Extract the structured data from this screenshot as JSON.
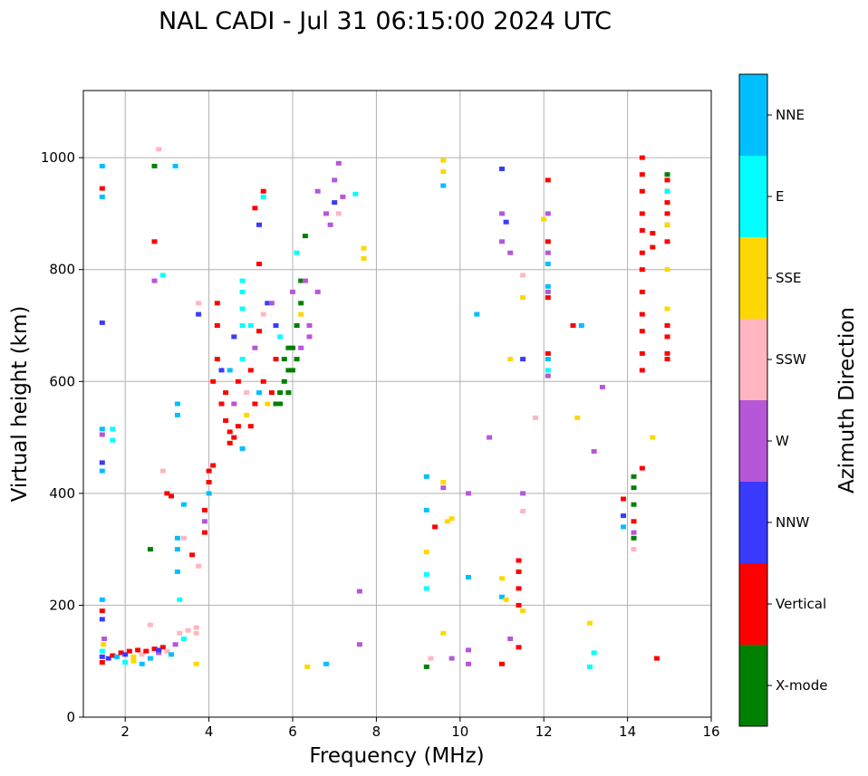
{
  "chart_data": {
    "type": "scatter",
    "title": "NAL CADI - Jul 31 06:15:00 2024 UTC",
    "xlabel": "Frequency (MHz)",
    "ylabel": "Virtual height (km)",
    "xlim": [
      1.0,
      16.0
    ],
    "ylim": [
      0,
      1120
    ],
    "xticks": [
      2,
      4,
      6,
      8,
      10,
      12,
      14,
      16
    ],
    "yticks": [
      0,
      200,
      400,
      600,
      800,
      1000
    ],
    "grid": true,
    "colorbar": {
      "title": "Azimuth Direction",
      "categories": [
        {
          "name": "X-mode",
          "color": "#008000"
        },
        {
          "name": "Vertical",
          "color": "#ff0000"
        },
        {
          "name": "NNW",
          "color": "#3a3aff"
        },
        {
          "name": "W",
          "color": "#b557d7"
        },
        {
          "name": "SSW",
          "color": "#ffb6c1"
        },
        {
          "name": "SSE",
          "color": "#ffd700"
        },
        {
          "name": "E",
          "color": "#00ffff"
        },
        {
          "name": "NNE",
          "color": "#00bfff"
        }
      ]
    },
    "points": [
      [
        1.45,
        98,
        1
      ],
      [
        1.45,
        108,
        2
      ],
      [
        1.45,
        118,
        6
      ],
      [
        1.48,
        130,
        5
      ],
      [
        1.5,
        140,
        3
      ],
      [
        1.45,
        175,
        2
      ],
      [
        1.45,
        190,
        1
      ],
      [
        1.45,
        210,
        7
      ],
      [
        1.45,
        440,
        7
      ],
      [
        1.45,
        455,
        2
      ],
      [
        1.45,
        505,
        3
      ],
      [
        1.45,
        515,
        7
      ],
      [
        1.45,
        705,
        2
      ],
      [
        1.45,
        930,
        7
      ],
      [
        1.45,
        945,
        1
      ],
      [
        1.45,
        985,
        7
      ],
      [
        1.7,
        515,
        6
      ],
      [
        1.7,
        495,
        6
      ],
      [
        1.6,
        105,
        2
      ],
      [
        1.7,
        110,
        1
      ],
      [
        1.8,
        108,
        7
      ],
      [
        1.9,
        115,
        1
      ],
      [
        2.0,
        112,
        2
      ],
      [
        2.1,
        118,
        1
      ],
      [
        2.2,
        108,
        5
      ],
      [
        2.3,
        120,
        1
      ],
      [
        2.4,
        112,
        4
      ],
      [
        2.5,
        118,
        1
      ],
      [
        2.6,
        105,
        7
      ],
      [
        2.7,
        122,
        1
      ],
      [
        2.8,
        115,
        3
      ],
      [
        2.9,
        125,
        1
      ],
      [
        3.0,
        118,
        4
      ],
      [
        3.1,
        112,
        7
      ],
      [
        3.2,
        130,
        3
      ],
      [
        3.3,
        150,
        4
      ],
      [
        3.4,
        140,
        6
      ],
      [
        3.5,
        155,
        4
      ],
      [
        3.7,
        150,
        4
      ],
      [
        3.7,
        160,
        4
      ],
      [
        3.7,
        95,
        5
      ],
      [
        2.0,
        98,
        6
      ],
      [
        2.2,
        100,
        5
      ],
      [
        2.4,
        95,
        7
      ],
      [
        2.8,
        120,
        2
      ],
      [
        2.6,
        165,
        4
      ],
      [
        2.7,
        985,
        0
      ],
      [
        2.8,
        1015,
        4
      ],
      [
        3.2,
        985,
        7
      ],
      [
        2.7,
        850,
        1
      ],
      [
        2.7,
        780,
        3
      ],
      [
        2.9,
        790,
        6
      ],
      [
        2.9,
        440,
        4
      ],
      [
        3.0,
        400,
        1
      ],
      [
        3.1,
        395,
        1
      ],
      [
        3.25,
        320,
        7
      ],
      [
        3.25,
        300,
        7
      ],
      [
        3.25,
        260,
        7
      ],
      [
        3.25,
        560,
        7
      ],
      [
        3.25,
        540,
        7
      ],
      [
        3.3,
        210,
        6
      ],
      [
        3.4,
        380,
        7
      ],
      [
        3.4,
        320,
        4
      ],
      [
        3.6,
        290,
        1
      ],
      [
        3.75,
        270,
        4
      ],
      [
        3.75,
        720,
        2
      ],
      [
        3.75,
        740,
        4
      ],
      [
        2.6,
        300,
        0
      ],
      [
        3.9,
        330,
        1
      ],
      [
        3.9,
        350,
        3
      ],
      [
        3.9,
        370,
        1
      ],
      [
        4.0,
        400,
        7
      ],
      [
        4.0,
        420,
        1
      ],
      [
        4.0,
        440,
        1
      ],
      [
        4.1,
        450,
        1
      ],
      [
        4.8,
        700,
        6
      ],
      [
        4.8,
        730,
        6
      ],
      [
        4.8,
        760,
        6
      ],
      [
        4.8,
        780,
        6
      ],
      [
        4.1,
        600,
        1
      ],
      [
        4.2,
        640,
        1
      ],
      [
        4.2,
        700,
        1
      ],
      [
        4.2,
        740,
        1
      ],
      [
        4.3,
        560,
        1
      ],
      [
        4.4,
        530,
        1
      ],
      [
        4.5,
        510,
        1
      ],
      [
        4.5,
        490,
        1
      ],
      [
        4.6,
        500,
        1
      ],
      [
        4.7,
        520,
        1
      ],
      [
        4.4,
        580,
        1
      ],
      [
        4.6,
        560,
        3
      ],
      [
        4.3,
        620,
        2
      ],
      [
        4.5,
        620,
        7
      ],
      [
        4.7,
        600,
        1
      ],
      [
        4.9,
        580,
        4
      ],
      [
        4.8,
        640,
        6
      ],
      [
        5.0,
        620,
        1
      ],
      [
        5.1,
        660,
        3
      ],
      [
        5.0,
        700,
        6
      ],
      [
        5.2,
        690,
        1
      ],
      [
        5.3,
        720,
        4
      ],
      [
        5.4,
        740,
        2
      ],
      [
        5.3,
        600,
        1
      ],
      [
        5.2,
        580,
        7
      ],
      [
        5.1,
        560,
        1
      ],
      [
        5.4,
        560,
        5
      ],
      [
        5.5,
        580,
        1
      ],
      [
        4.9,
        540,
        5
      ],
      [
        4.6,
        680,
        2
      ],
      [
        4.8,
        480,
        7
      ],
      [
        5.0,
        520,
        1
      ],
      [
        5.6,
        640,
        1
      ],
      [
        5.7,
        680,
        6
      ],
      [
        5.6,
        700,
        2
      ],
      [
        5.5,
        740,
        3
      ],
      [
        5.6,
        560,
        0
      ],
      [
        5.7,
        580,
        0
      ],
      [
        5.8,
        600,
        0
      ],
      [
        5.9,
        620,
        0
      ],
      [
        5.8,
        640,
        0
      ],
      [
        6.0,
        660,
        0
      ],
      [
        6.1,
        700,
        0
      ],
      [
        6.2,
        740,
        0
      ],
      [
        6.2,
        780,
        0
      ],
      [
        6.1,
        830,
        6
      ],
      [
        6.3,
        860,
        0
      ],
      [
        6.0,
        760,
        3
      ],
      [
        6.2,
        720,
        5
      ],
      [
        6.3,
        780,
        3
      ],
      [
        6.4,
        700,
        3
      ],
      [
        6.2,
        660,
        3
      ],
      [
        6.4,
        680,
        3
      ],
      [
        6.6,
        760,
        3
      ],
      [
        5.9,
        660,
        0
      ],
      [
        5.7,
        560,
        0
      ],
      [
        5.9,
        580,
        0
      ],
      [
        6.0,
        620,
        0
      ],
      [
        6.1,
        640,
        0
      ],
      [
        6.8,
        900,
        3
      ],
      [
        6.9,
        880,
        3
      ],
      [
        7.0,
        920,
        2
      ],
      [
        7.1,
        900,
        4
      ],
      [
        7.2,
        930,
        3
      ],
      [
        7.0,
        960,
        3
      ],
      [
        7.1,
        990,
        3
      ],
      [
        6.6,
        940,
        3
      ],
      [
        7.5,
        935,
        6
      ],
      [
        7.7,
        820,
        5
      ],
      [
        7.7,
        838,
        5
      ],
      [
        7.6,
        225,
        3
      ],
      [
        7.6,
        130,
        3
      ],
      [
        6.8,
        95,
        7
      ],
      [
        6.35,
        90,
        5
      ],
      [
        5.3,
        940,
        1
      ],
      [
        5.2,
        880,
        2
      ],
      [
        5.2,
        810,
        1
      ],
      [
        5.1,
        910,
        1
      ],
      [
        5.3,
        930,
        6
      ],
      [
        9.2,
        90,
        0
      ],
      [
        9.3,
        105,
        4
      ],
      [
        9.2,
        255,
        6
      ],
      [
        9.2,
        230,
        6
      ],
      [
        9.2,
        295,
        5
      ],
      [
        9.2,
        370,
        7
      ],
      [
        9.2,
        430,
        7
      ],
      [
        9.6,
        420,
        5
      ],
      [
        9.6,
        410,
        3
      ],
      [
        9.6,
        150,
        5
      ],
      [
        9.4,
        340,
        1
      ],
      [
        9.7,
        350,
        5
      ],
      [
        9.8,
        355,
        5
      ],
      [
        9.8,
        105,
        3
      ],
      [
        9.6,
        950,
        7
      ],
      [
        9.6,
        975,
        5
      ],
      [
        9.6,
        995,
        5
      ],
      [
        10.2,
        250,
        7
      ],
      [
        10.2,
        400,
        3
      ],
      [
        10.2,
        120,
        3
      ],
      [
        10.2,
        95,
        3
      ],
      [
        10.4,
        720,
        7
      ],
      [
        10.7,
        500,
        3
      ],
      [
        11.0,
        980,
        2
      ],
      [
        11.0,
        900,
        3
      ],
      [
        11.0,
        850,
        3
      ],
      [
        11.1,
        885,
        2
      ],
      [
        11.2,
        830,
        3
      ],
      [
        11.2,
        640,
        5
      ],
      [
        11.2,
        140,
        3
      ],
      [
        11.0,
        95,
        1
      ],
      [
        11.0,
        215,
        7
      ],
      [
        11.0,
        248,
        5
      ],
      [
        11.1,
        210,
        5
      ],
      [
        11.4,
        200,
        1
      ],
      [
        11.4,
        230,
        1
      ],
      [
        11.4,
        260,
        1
      ],
      [
        11.4,
        280,
        1
      ],
      [
        11.4,
        125,
        1
      ],
      [
        11.5,
        190,
        5
      ],
      [
        11.5,
        368,
        4
      ],
      [
        11.5,
        400,
        3
      ],
      [
        11.5,
        640,
        2
      ],
      [
        11.5,
        750,
        5
      ],
      [
        11.5,
        790,
        4
      ],
      [
        11.8,
        535,
        4
      ],
      [
        12.0,
        890,
        5
      ],
      [
        12.1,
        960,
        1
      ],
      [
        12.1,
        900,
        3
      ],
      [
        12.1,
        850,
        1
      ],
      [
        12.1,
        830,
        3
      ],
      [
        12.1,
        810,
        7
      ],
      [
        12.1,
        760,
        3
      ],
      [
        12.1,
        770,
        7
      ],
      [
        12.1,
        750,
        1
      ],
      [
        12.1,
        640,
        7
      ],
      [
        12.1,
        620,
        6
      ],
      [
        12.1,
        610,
        3
      ],
      [
        12.1,
        650,
        1
      ],
      [
        12.7,
        700,
        1
      ],
      [
        12.9,
        700,
        7
      ],
      [
        12.8,
        535,
        5
      ],
      [
        13.2,
        475,
        3
      ],
      [
        13.4,
        590,
        3
      ],
      [
        13.2,
        115,
        6
      ],
      [
        13.1,
        90,
        6
      ],
      [
        13.1,
        168,
        5
      ],
      [
        13.9,
        340,
        7
      ],
      [
        13.9,
        360,
        2
      ],
      [
        13.9,
        390,
        1
      ],
      [
        14.15,
        330,
        3
      ],
      [
        14.15,
        350,
        1
      ],
      [
        14.15,
        380,
        0
      ],
      [
        14.15,
        410,
        0
      ],
      [
        14.15,
        430,
        0
      ],
      [
        14.15,
        320,
        0
      ],
      [
        14.15,
        300,
        4
      ],
      [
        14.35,
        445,
        1
      ],
      [
        14.35,
        1000,
        1
      ],
      [
        14.35,
        970,
        1
      ],
      [
        14.35,
        900,
        1
      ],
      [
        14.35,
        870,
        1
      ],
      [
        14.35,
        830,
        1
      ],
      [
        14.35,
        800,
        1
      ],
      [
        14.35,
        760,
        1
      ],
      [
        14.35,
        720,
        1
      ],
      [
        14.35,
        690,
        1
      ],
      [
        14.35,
        650,
        1
      ],
      [
        14.35,
        620,
        1
      ],
      [
        14.35,
        940,
        1
      ],
      [
        14.6,
        865,
        1
      ],
      [
        14.6,
        840,
        1
      ],
      [
        14.6,
        500,
        5
      ],
      [
        14.7,
        105,
        1
      ],
      [
        14.95,
        960,
        1
      ],
      [
        14.95,
        940,
        1
      ],
      [
        14.95,
        920,
        1
      ],
      [
        14.95,
        900,
        1
      ],
      [
        14.95,
        880,
        1
      ],
      [
        14.95,
        850,
        1
      ],
      [
        14.95,
        800,
        5
      ],
      [
        14.95,
        730,
        5
      ],
      [
        14.95,
        700,
        1
      ],
      [
        14.95,
        680,
        1
      ],
      [
        14.95,
        650,
        1
      ],
      [
        14.95,
        640,
        1
      ],
      [
        14.95,
        880,
        5
      ],
      [
        14.95,
        940,
        6
      ],
      [
        14.95,
        970,
        0
      ]
    ]
  }
}
